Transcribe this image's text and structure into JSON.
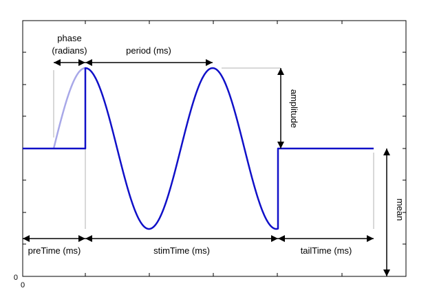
{
  "figure": {
    "annotations": {
      "phase_line1": "phase",
      "phase_line2": "(radians)",
      "period": "period (ms)",
      "amplitude": "amplitude",
      "mean": "mean",
      "preTime": "preTime (ms)",
      "stimTime": "stimTime (ms)",
      "tailTime": "tailTime (ms)"
    },
    "axis": {
      "x_origin_label": "0",
      "y_origin_label": "0"
    },
    "colors": {
      "waveform": "#1010c8",
      "phase_ghost": "#a8a8e8",
      "guide": "#b0b0b0",
      "arrow": "#000000",
      "axis": "#000000"
    }
  }
}
